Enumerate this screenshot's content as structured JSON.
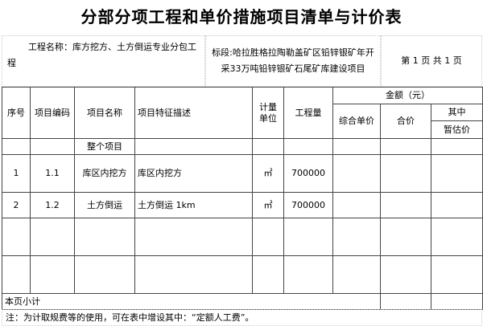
{
  "title": "分部分项工程和单价措施项目清单与计价表",
  "project_name": "工程名称：库方挖方、土方倒运专业分包工程",
  "section": "标段:哈拉胜格拉陶勒盖矿区铅锌银矿年开采33万吨铅锌银矿石尾矿库建设项目",
  "page_info": "第 1 页  共 1 页",
  "headers": {
    "seq": "序号",
    "code": "项目编码",
    "name": "项目名称",
    "desc": "项目特征描述",
    "unit": "计量单位",
    "qty": "工程量",
    "amount": "金额（元）",
    "unit_price": "综合单价",
    "total": "合价",
    "of_which": "其中",
    "provisional": "暂估价"
  },
  "group_row": "整个项目",
  "rows": [
    {
      "seq": "1",
      "code": "1.1",
      "name": "库区内挖方",
      "desc": "库区内挖方",
      "unit": "㎡",
      "qty": "700000"
    },
    {
      "seq": "2",
      "code": "1.2",
      "name": "土方倒运",
      "desc": "土方倒运 1km",
      "unit": "㎡",
      "qty": "700000"
    }
  ],
  "subtotal": "本页小计",
  "note": "注：为计取规费等的使用，可在表中增设其中：“定额人工费”。"
}
